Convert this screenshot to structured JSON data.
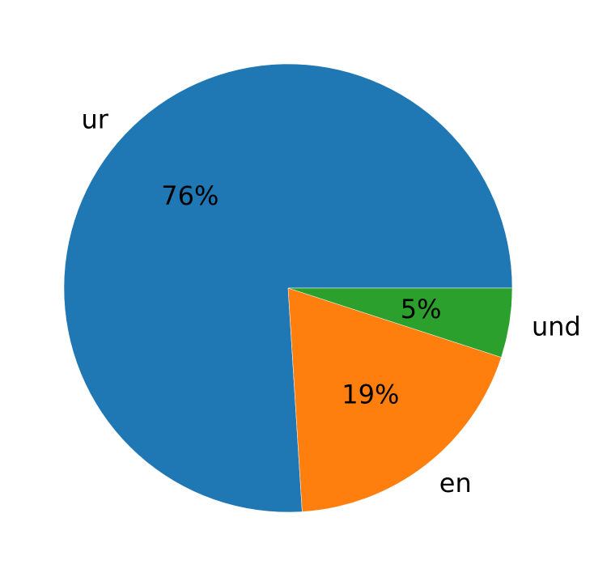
{
  "chart_data": {
    "type": "pie",
    "title": "",
    "labels": [
      "ur",
      "en",
      "und"
    ],
    "values": [
      76,
      19,
      5
    ],
    "percent_labels": [
      "76%",
      "19%",
      "5%"
    ],
    "colors": [
      "#1f77b4",
      "#ff7f0e",
      "#2ca02c"
    ],
    "start_angle_deg": 0,
    "counterclockwise": true,
    "legend": "none"
  }
}
